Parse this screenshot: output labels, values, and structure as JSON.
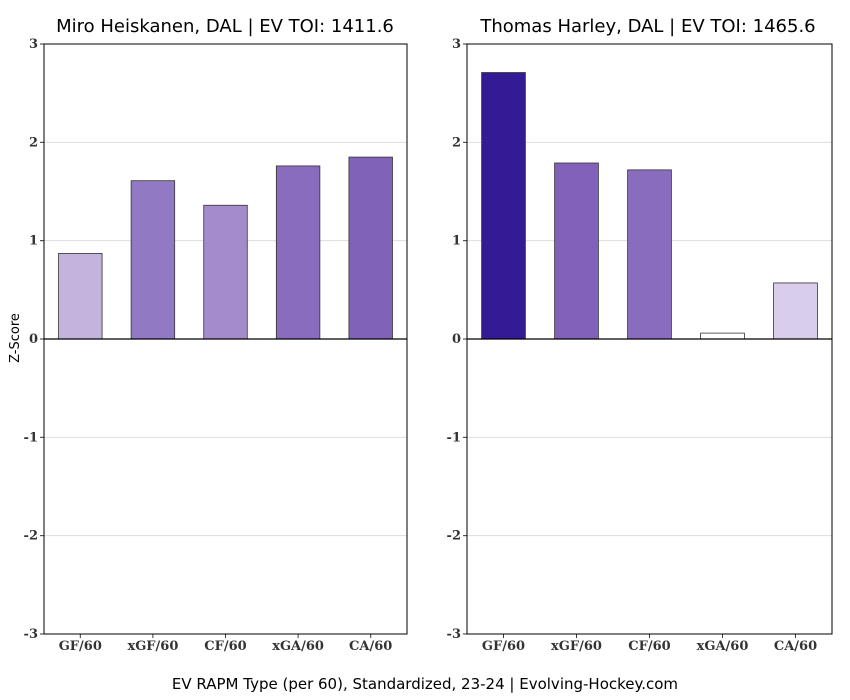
{
  "chart_data": [
    {
      "type": "bar",
      "title": "Miro Heiskanen, DAL  |  EV TOI: 1411.6",
      "categories": [
        "GF/60",
        "xGF/60",
        "CF/60",
        "xGA/60",
        "CA/60"
      ],
      "values": [
        0.87,
        1.61,
        1.36,
        1.76,
        1.85
      ],
      "colors": [
        "#c3b4de",
        "#9279c4",
        "#a38bcc",
        "#8a6cbf",
        "#8062b9"
      ],
      "ylabel": "Z-Score",
      "ylim": [
        -3,
        3
      ],
      "yticks": [
        -3,
        -2,
        -1,
        0,
        1,
        2,
        3
      ],
      "grid": true
    },
    {
      "type": "bar",
      "title": "Thomas Harley, DAL  |  EV TOI: 1465.6",
      "categories": [
        "GF/60",
        "xGF/60",
        "CF/60",
        "xGA/60",
        "CA/60"
      ],
      "values": [
        2.71,
        1.79,
        1.72,
        0.06,
        0.57
      ],
      "colors": [
        "#341b95",
        "#8261ba",
        "#8a6cbf",
        "#ffffff",
        "#d9cdec"
      ],
      "ylabel": "",
      "ylim": [
        -3,
        3
      ],
      "yticks": [
        -3,
        -2,
        -1,
        0,
        1,
        2,
        3
      ],
      "grid": true
    }
  ],
  "caption": "EV RAPM Type (per 60), Standardized, 23-24    |    Evolving-Hockey.com"
}
